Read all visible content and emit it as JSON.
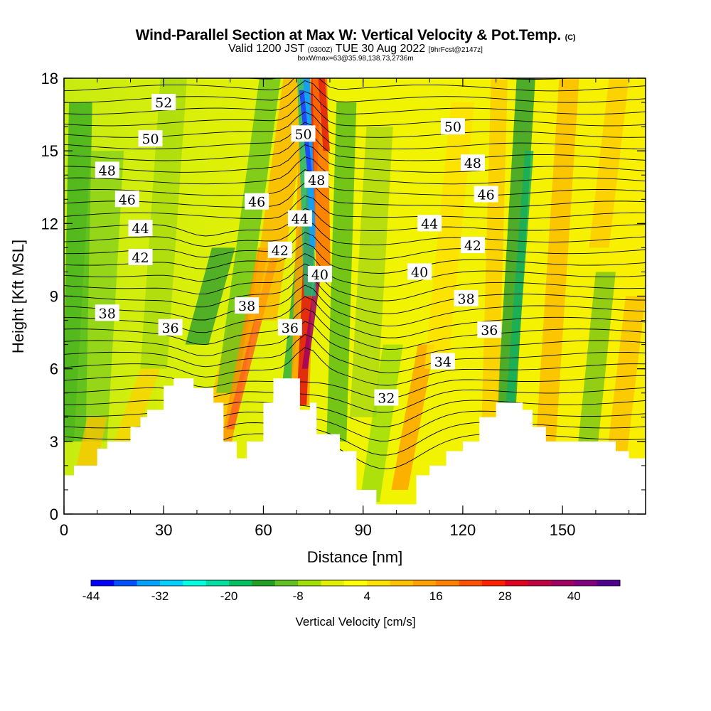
{
  "title": {
    "main": "Wind-Parallel Section at Max W: Vertical Velocity & Pot.Temp.",
    "copyright": "(C)",
    "valid_prefix": "Valid 1200 JST",
    "valid_utc": "(0300Z)",
    "valid_date": "TUE 30 Aug 2022",
    "forecast": "[9hrFcst@2147z]",
    "box_info": "boxWmax=63@35.98,138.73,2736m"
  },
  "chart_data": {
    "type": "heatmap",
    "xlabel": "Distance [nm]",
    "ylabel": "Height [Kft MSL]",
    "xlim": [
      0,
      175
    ],
    "ylim": [
      0,
      18
    ],
    "x_ticks": [
      "0",
      "30",
      "60",
      "90",
      "120",
      "150"
    ],
    "y_ticks": [
      "0",
      "3",
      "6",
      "9",
      "12",
      "15",
      "18"
    ],
    "colorbar": {
      "label": "Vertical Velocity [cm/s]",
      "tick_labels": [
        "-44",
        "-32",
        "-20",
        "-8",
        "4",
        "16",
        "28",
        "40"
      ],
      "colors": [
        "#0000ff",
        "#0050ff",
        "#00a0ff",
        "#00d0ff",
        "#00ffe0",
        "#00e0a0",
        "#00c060",
        "#20a020",
        "#60c020",
        "#a0e000",
        "#e0f000",
        "#ffff00",
        "#ffe000",
        "#ffc000",
        "#ffa000",
        "#ff8000",
        "#ff5000",
        "#ff2000",
        "#e00020",
        "#c00040",
        "#a00060",
        "#800080",
        "#500090"
      ]
    },
    "theta_contours": [
      {
        "label": "52",
        "x": 30,
        "y": 17.0
      },
      {
        "label": "50",
        "x": 26,
        "y": 15.5
      },
      {
        "label": "50",
        "x": 72,
        "y": 15.7
      },
      {
        "label": "50",
        "x": 117,
        "y": 16.0
      },
      {
        "label": "48",
        "x": 13,
        "y": 14.2
      },
      {
        "label": "48",
        "x": 76,
        "y": 13.8
      },
      {
        "label": "48",
        "x": 123,
        "y": 14.5
      },
      {
        "label": "46",
        "x": 19,
        "y": 13.0
      },
      {
        "label": "46",
        "x": 58,
        "y": 12.9
      },
      {
        "label": "46",
        "x": 127,
        "y": 13.2
      },
      {
        "label": "44",
        "x": 23,
        "y": 11.8
      },
      {
        "label": "44",
        "x": 71,
        "y": 12.2
      },
      {
        "label": "44",
        "x": 110,
        "y": 12.0
      },
      {
        "label": "42",
        "x": 23,
        "y": 10.6
      },
      {
        "label": "42",
        "x": 65,
        "y": 10.9
      },
      {
        "label": "42",
        "x": 123,
        "y": 11.1
      },
      {
        "label": "40",
        "x": 77,
        "y": 9.9
      },
      {
        "label": "40",
        "x": 107,
        "y": 10.0
      },
      {
        "label": "38",
        "x": 13,
        "y": 8.3
      },
      {
        "label": "38",
        "x": 55,
        "y": 8.6
      },
      {
        "label": "38",
        "x": 121,
        "y": 8.9
      },
      {
        "label": "36",
        "x": 32,
        "y": 7.7
      },
      {
        "label": "36",
        "x": 68,
        "y": 7.7
      },
      {
        "label": "36",
        "x": 128,
        "y": 7.6
      },
      {
        "label": "34",
        "x": 114,
        "y": 6.3
      },
      {
        "label": "32",
        "x": 97,
        "y": 4.8
      }
    ],
    "terrain_profile": {
      "x": [
        0,
        3,
        10,
        13,
        20,
        23,
        25,
        30,
        33,
        36,
        39,
        45,
        48,
        52,
        55,
        60,
        63,
        68,
        71,
        74,
        76,
        83,
        88,
        90,
        94,
        97,
        102,
        106,
        110,
        115,
        120,
        125,
        130,
        135,
        138,
        141,
        145,
        150,
        155,
        160,
        166,
        170,
        175
      ],
      "y": [
        1.6,
        2.0,
        2.7,
        3.0,
        3.6,
        4.0,
        4.3,
        5.3,
        5.6,
        5.6,
        5.2,
        4.6,
        3.0,
        2.3,
        3.0,
        4.6,
        5.6,
        5.6,
        4.3,
        4.6,
        3.3,
        2.6,
        1.0,
        1.0,
        0.4,
        0.4,
        0.4,
        1.6,
        2.0,
        2.6,
        3.0,
        4.0,
        4.6,
        4.6,
        4.3,
        3.6,
        3.0,
        3.0,
        3.0,
        3.0,
        2.6,
        2.3,
        2.3
      ]
    }
  }
}
